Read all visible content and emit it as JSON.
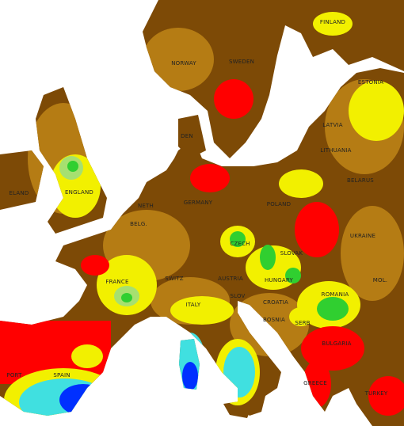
{
  "map": {
    "labels": [
      "FINLAND",
      "NORWAY",
      "SWEDEN",
      "ESTONIA",
      "LATVIA",
      "LITHUANIA",
      "DEN",
      "ELAND",
      "ENGLAND",
      "BELARUS",
      "NETH",
      "GERMANY",
      "POLAND",
      "BELG.",
      "UKRAINE",
      "CZECH",
      "SLOVAK",
      "FRANCE",
      "SWITZ",
      "AUSTRIA",
      "HUNGARY",
      "MOL.",
      "ROMANIA",
      "SLOV",
      "CROATIA",
      "ITALY",
      "BOSNIA",
      "SERB",
      "BULGARIA",
      "PORT",
      "SPAIN",
      "GREECE",
      "TURKEY"
    ]
  }
}
